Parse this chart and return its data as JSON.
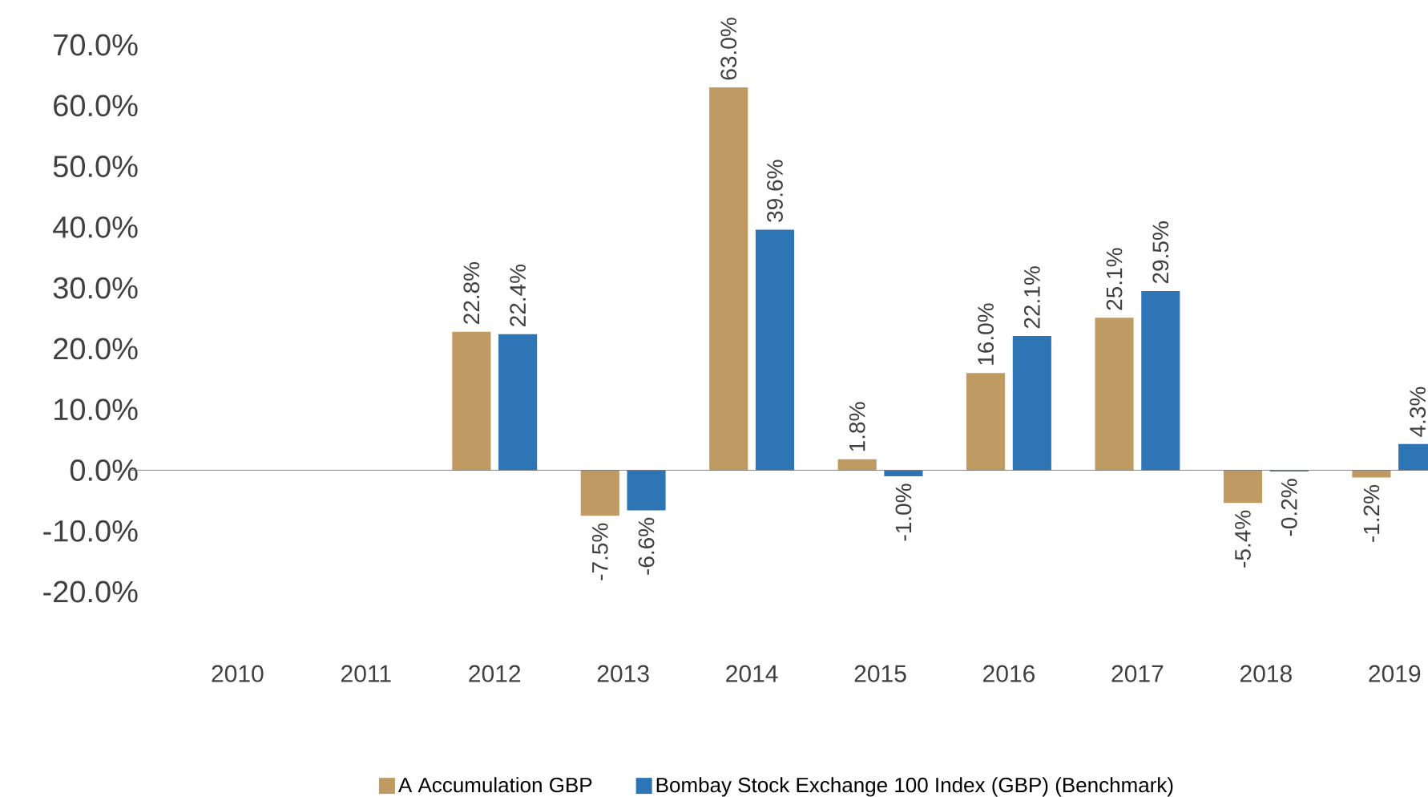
{
  "chart_data": {
    "type": "bar",
    "categories": [
      "2010",
      "2011",
      "2012",
      "2013",
      "2014",
      "2015",
      "2016",
      "2017",
      "2018",
      "2019"
    ],
    "series": [
      {
        "name": "A Accumulation GBP",
        "color": "#c09a63",
        "values": [
          null,
          null,
          22.8,
          -7.5,
          63.0,
          1.8,
          16.0,
          25.1,
          -5.4,
          -1.2
        ],
        "value_labels": [
          null,
          null,
          "22.8%",
          "-7.5%",
          "63.0%",
          "1.8%",
          "16.0%",
          "25.1%",
          "-5.4%",
          "-1.2%"
        ]
      },
      {
        "name": "Bombay Stock Exchange 100 Index (GBP) (Benchmark)",
        "color": "#2e75b6",
        "values": [
          null,
          null,
          22.4,
          -6.6,
          39.6,
          -1.0,
          22.1,
          29.5,
          -0.2,
          4.3
        ],
        "value_labels": [
          null,
          null,
          "22.4%",
          "-6.6%",
          "39.6%",
          "-1.0%",
          "22.1%",
          "29.5%",
          "-0.2%",
          "4.3%"
        ]
      }
    ],
    "ylim": [
      -20,
      70
    ],
    "yticks": [
      {
        "value": -20,
        "label": "-20.0%"
      },
      {
        "value": -10,
        "label": "-10.0%"
      },
      {
        "value": 0,
        "label": "0.0%"
      },
      {
        "value": 10,
        "label": "10.0%"
      },
      {
        "value": 20,
        "label": "20.0%"
      },
      {
        "value": 30,
        "label": "30.0%"
      },
      {
        "value": 40,
        "label": "40.0%"
      },
      {
        "value": 50,
        "label": "50.0%"
      },
      {
        "value": 60,
        "label": "60.0%"
      },
      {
        "value": 70,
        "label": "70.0%"
      }
    ],
    "legend": "bottom"
  }
}
